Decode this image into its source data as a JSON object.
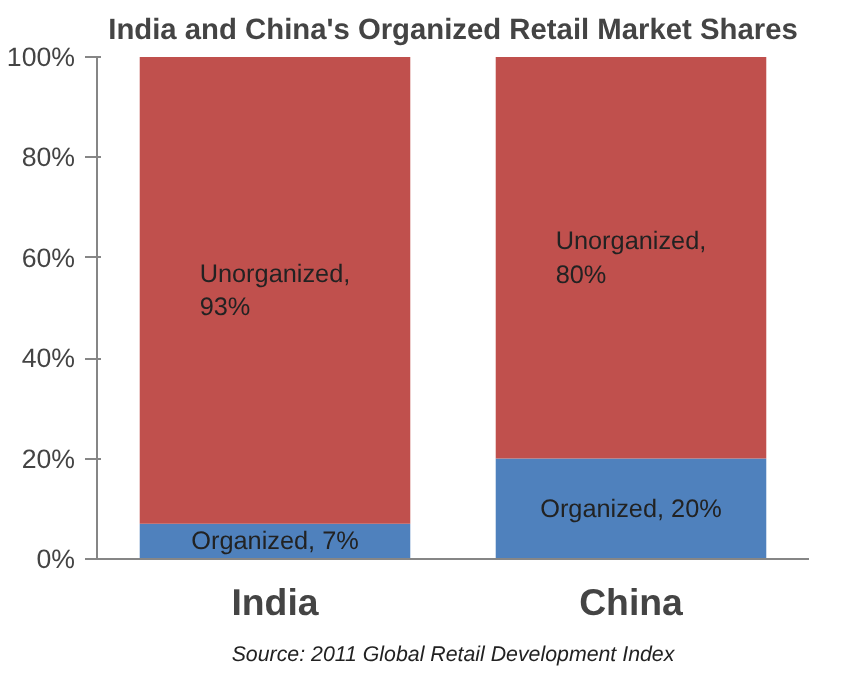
{
  "chart_data": {
    "type": "bar",
    "title": "India and China's Organized Retail Market Shares",
    "categories": [
      "India",
      "China"
    ],
    "stacked": true,
    "series": [
      {
        "color": "#4f81bd",
        "values": [
          7,
          20
        ],
        "value_labels": [
          "Organized, 7%",
          "Organized, 20%"
        ]
      },
      {
        "color": "#c0504d",
        "values": [
          93,
          80
        ],
        "value_labels": [
          "Unorganized, 93%",
          "Unorganized, 80%"
        ]
      }
    ],
    "ylim": [
      0,
      100
    ],
    "yticks": [
      {
        "value": 0,
        "label": "0%"
      },
      {
        "value": 20,
        "label": "20%"
      },
      {
        "value": 40,
        "label": "40%"
      },
      {
        "value": 60,
        "label": "60%"
      },
      {
        "value": 80,
        "label": "80%"
      },
      {
        "value": 100,
        "label": "100%"
      }
    ],
    "grid": false,
    "annotations": [
      "Source: 2011 Global Retail Development Index"
    ]
  }
}
